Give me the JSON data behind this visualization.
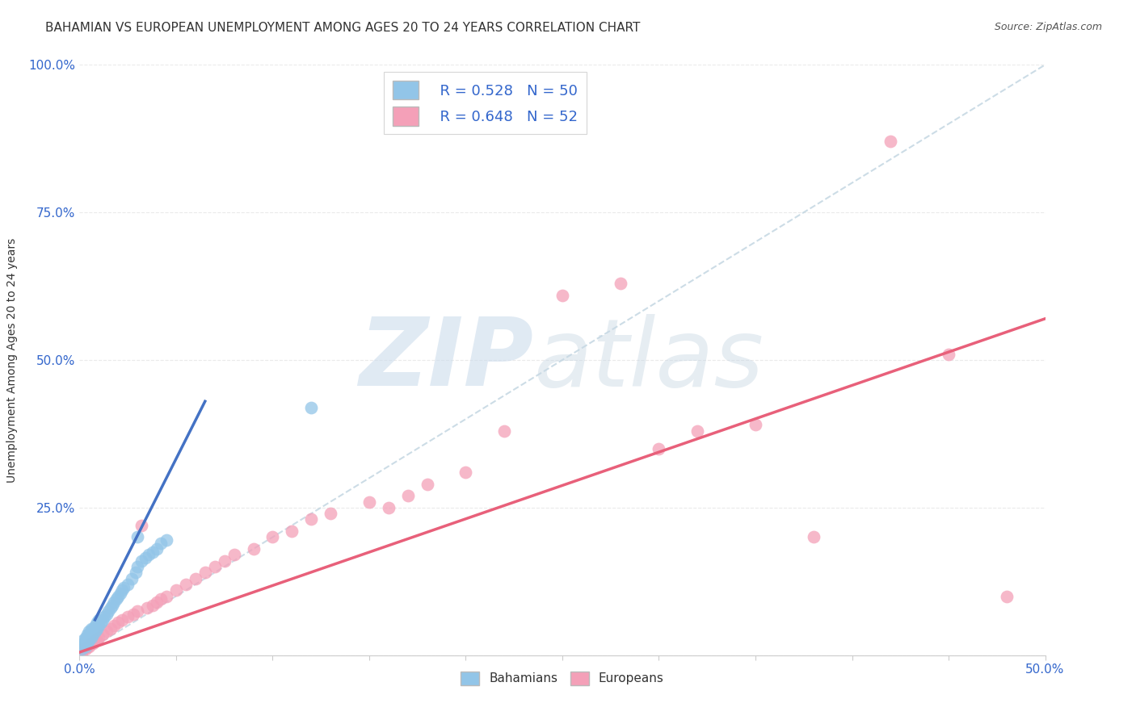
{
  "title": "BAHAMIAN VS EUROPEAN UNEMPLOYMENT AMONG AGES 20 TO 24 YEARS CORRELATION CHART",
  "source": "Source: ZipAtlas.com",
  "xlim": [
    0,
    0.5
  ],
  "ylim": [
    0,
    1.0
  ],
  "legend_label1": "Bahamians",
  "legend_label2": "Europeans",
  "r1": 0.528,
  "n1": 50,
  "r2": 0.648,
  "n2": 52,
  "color_blue": "#92c5e8",
  "color_pink": "#f4a0b8",
  "color_blue_line": "#4472c4",
  "color_pink_line": "#e8607a",
  "color_diag": "#c0d4e0",
  "ylabel": "Unemployment Among Ages 20 to 24 years",
  "legend_text_color": "#3366cc",
  "axis_label_color": "#3366cc",
  "grid_color": "#e8e8e8",
  "title_fontsize": 11,
  "blue_scatter_x": [
    0.001,
    0.001,
    0.002,
    0.002,
    0.003,
    0.003,
    0.003,
    0.004,
    0.004,
    0.004,
    0.005,
    0.005,
    0.005,
    0.006,
    0.006,
    0.006,
    0.007,
    0.007,
    0.008,
    0.008,
    0.009,
    0.009,
    0.01,
    0.01,
    0.011,
    0.012,
    0.013,
    0.014,
    0.015,
    0.016,
    0.017,
    0.018,
    0.019,
    0.02,
    0.021,
    0.022,
    0.023,
    0.025,
    0.027,
    0.029,
    0.03,
    0.032,
    0.034,
    0.036,
    0.038,
    0.04,
    0.042,
    0.045,
    0.12,
    0.03
  ],
  "blue_scatter_y": [
    0.01,
    0.015,
    0.02,
    0.025,
    0.015,
    0.025,
    0.03,
    0.02,
    0.03,
    0.035,
    0.025,
    0.035,
    0.04,
    0.03,
    0.04,
    0.045,
    0.035,
    0.045,
    0.04,
    0.05,
    0.045,
    0.055,
    0.05,
    0.06,
    0.055,
    0.06,
    0.065,
    0.07,
    0.075,
    0.08,
    0.085,
    0.09,
    0.095,
    0.1,
    0.105,
    0.11,
    0.115,
    0.12,
    0.13,
    0.14,
    0.15,
    0.16,
    0.165,
    0.17,
    0.175,
    0.18,
    0.19,
    0.195,
    0.42,
    0.2
  ],
  "pink_scatter_x": [
    0.001,
    0.002,
    0.003,
    0.004,
    0.005,
    0.006,
    0.007,
    0.008,
    0.009,
    0.01,
    0.012,
    0.014,
    0.016,
    0.018,
    0.02,
    0.022,
    0.025,
    0.028,
    0.03,
    0.032,
    0.035,
    0.038,
    0.04,
    0.042,
    0.045,
    0.05,
    0.055,
    0.06,
    0.065,
    0.07,
    0.075,
    0.08,
    0.09,
    0.1,
    0.11,
    0.12,
    0.13,
    0.15,
    0.16,
    0.17,
    0.18,
    0.2,
    0.22,
    0.25,
    0.28,
    0.3,
    0.32,
    0.35,
    0.38,
    0.42,
    0.45,
    0.48
  ],
  "pink_scatter_y": [
    0.005,
    0.01,
    0.01,
    0.015,
    0.015,
    0.02,
    0.02,
    0.025,
    0.025,
    0.03,
    0.035,
    0.04,
    0.045,
    0.05,
    0.055,
    0.06,
    0.065,
    0.07,
    0.075,
    0.22,
    0.08,
    0.085,
    0.09,
    0.095,
    0.1,
    0.11,
    0.12,
    0.13,
    0.14,
    0.15,
    0.16,
    0.17,
    0.18,
    0.2,
    0.21,
    0.23,
    0.24,
    0.26,
    0.25,
    0.27,
    0.29,
    0.31,
    0.38,
    0.61,
    0.63,
    0.35,
    0.38,
    0.39,
    0.2,
    0.87,
    0.51,
    0.1
  ],
  "blue_line_x": [
    0.008,
    0.065
  ],
  "blue_line_y": [
    0.06,
    0.43
  ],
  "pink_line_x": [
    0.0,
    0.5
  ],
  "pink_line_y": [
    0.005,
    0.57
  ]
}
